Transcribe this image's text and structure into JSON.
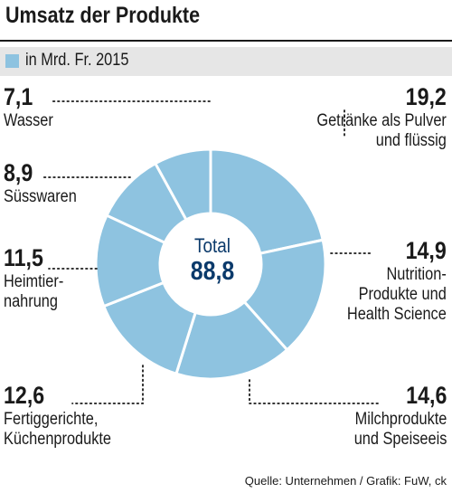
{
  "title": "Umsatz der Produkte",
  "legend_label": "in Mrd. Fr. 2015",
  "center": {
    "label": "Total",
    "value": "88,8"
  },
  "source": "Quelle: Unternehmen / Grafik: FuW, ck",
  "colors": {
    "slice": "#8ec3e0",
    "separator": "#ffffff",
    "leader": "#1a1a1a",
    "center": "#0b3a6b"
  },
  "chart_data": {
    "type": "pie",
    "variant": "donut",
    "total": 88.8,
    "unit": "Mrd. Fr.",
    "categories": [
      "Getränke als Pulver und flüssig",
      "Nutrition-Produkte und Health Science",
      "Milchprodukte und Speiseeis",
      "Fertiggerichte, Küchenprodukte",
      "Heimtiernahrung",
      "Süsswaren",
      "Wasser"
    ],
    "values": [
      19.2,
      14.9,
      14.6,
      12.6,
      11.5,
      8.9,
      7.1
    ]
  },
  "labels": [
    {
      "value": "19,2",
      "lines": [
        "Getränke als Pulver",
        "und flüssig"
      ]
    },
    {
      "value": "14,9",
      "lines": [
        "Nutrition-",
        "Produkte und",
        "Health Science"
      ]
    },
    {
      "value": "14,6",
      "lines": [
        "Milchprodukte",
        "und Speiseeis"
      ]
    },
    {
      "value": "12,6",
      "lines": [
        "Fertiggerichte,",
        "Küchenprodukte"
      ]
    },
    {
      "value": "11,5",
      "lines": [
        "Heimtier-",
        "nahrung"
      ]
    },
    {
      "value": "8,9",
      "lines": [
        "Süsswaren"
      ]
    },
    {
      "value": "7,1",
      "lines": [
        "Wasser"
      ]
    }
  ]
}
